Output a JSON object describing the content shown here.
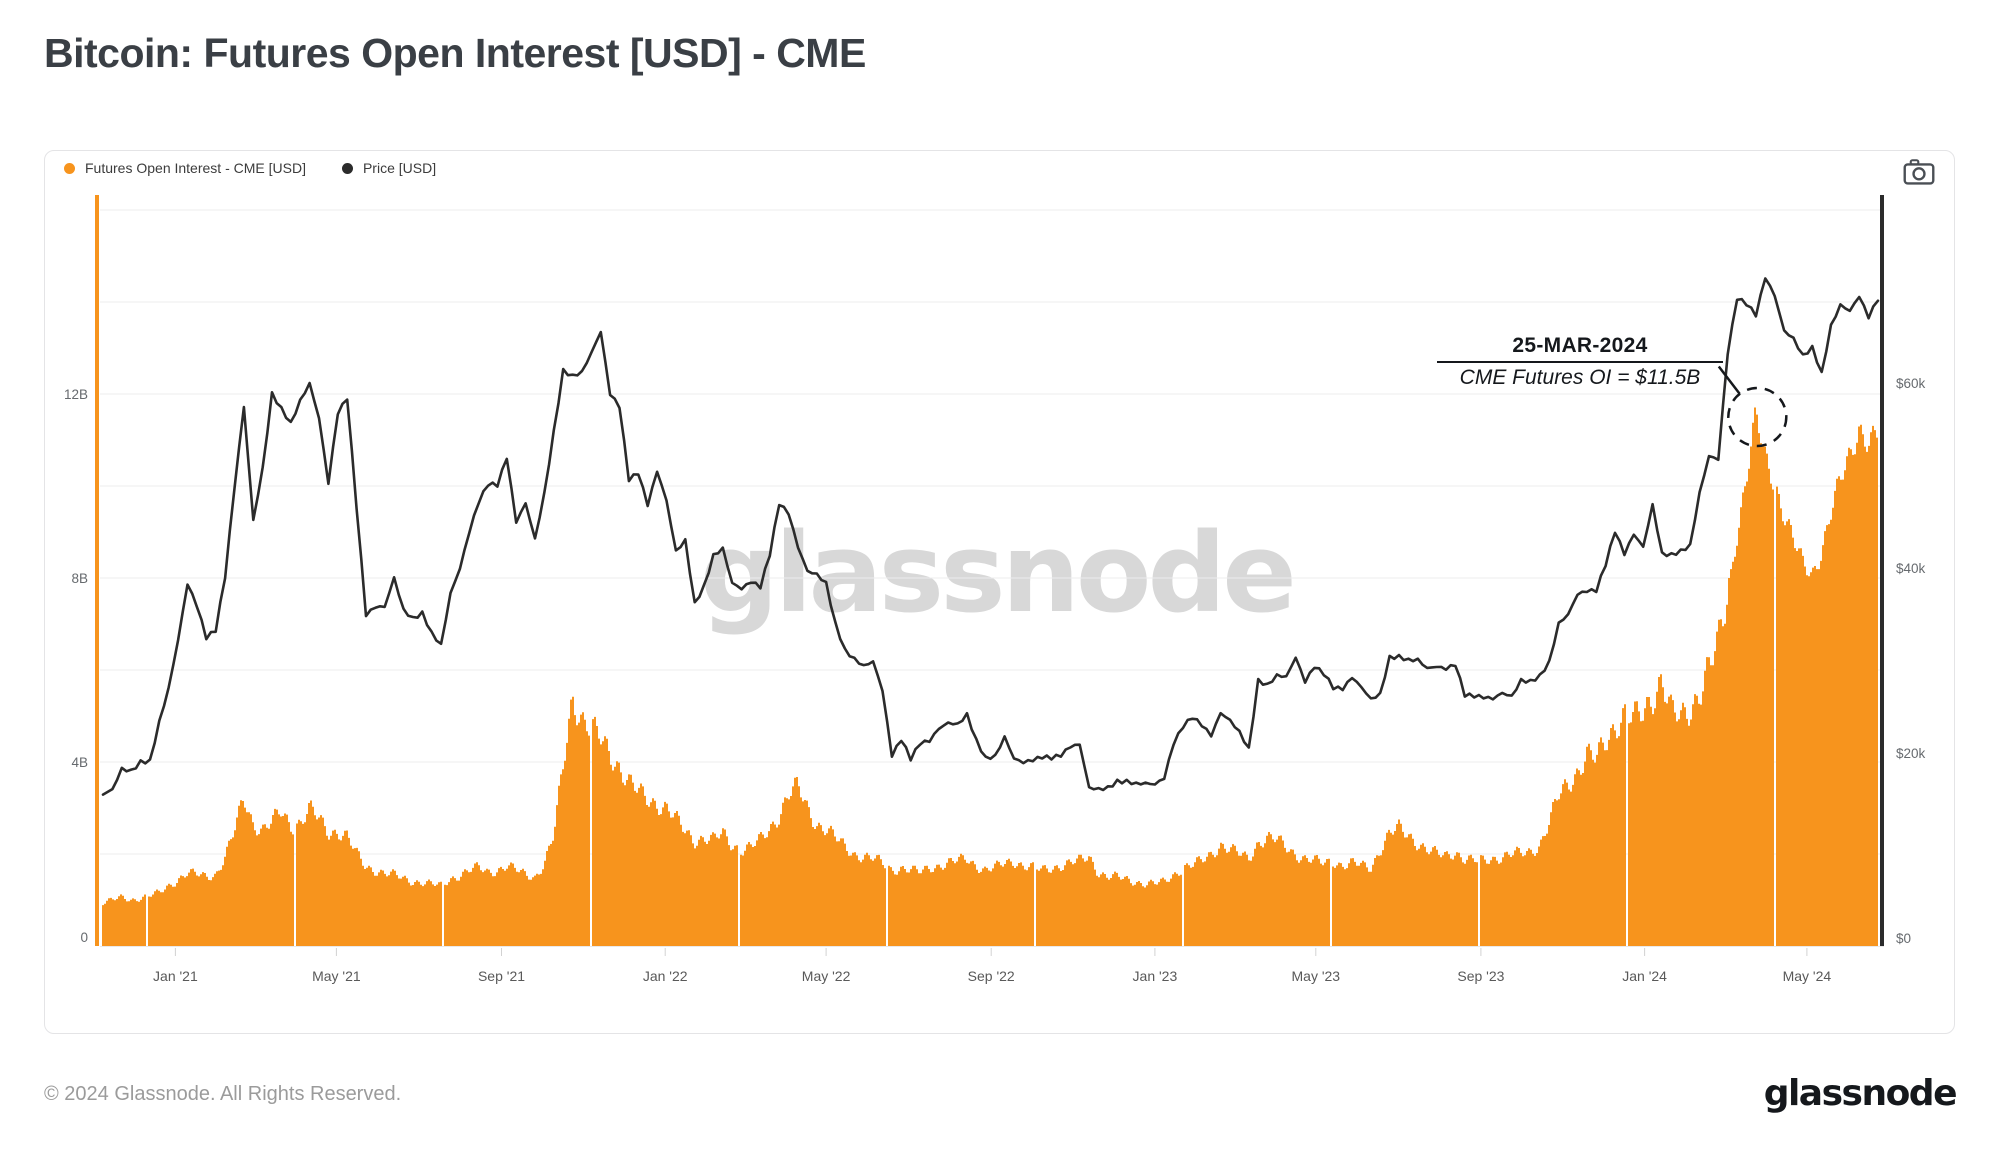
{
  "page": {
    "title": "Bitcoin: Futures Open Interest [USD] - CME"
  },
  "panel": {
    "legend": [
      {
        "label": "Futures Open Interest - CME [USD]",
        "color": "#f7941d"
      },
      {
        "label": "Price [USD]",
        "color": "#2b2b2b"
      }
    ],
    "camera_icon": "camera-icon"
  },
  "watermark": {
    "text": "glassnode"
  },
  "annotation": {
    "line1": "25-MAR-2024",
    "line2": "CME Futures OI = $11.5B",
    "date": "2024-03-25",
    "value_billions": 11.5
  },
  "footer": {
    "copyright": "© 2024 Glassnode. All Rights Reserved.",
    "logo_text": "glassnode"
  },
  "chart_data": {
    "type": "combo",
    "title": "Bitcoin: Futures Open Interest [USD] - CME",
    "x_start": "2020-11-08",
    "x_step_days": 7,
    "x_ticks": [
      {
        "label": "Jan '21",
        "date": "2021-01-01"
      },
      {
        "label": "May '21",
        "date": "2021-05-01"
      },
      {
        "label": "Sep '21",
        "date": "2021-09-01"
      },
      {
        "label": "Jan '22",
        "date": "2022-01-01"
      },
      {
        "label": "May '22",
        "date": "2022-05-01"
      },
      {
        "label": "Sep '22",
        "date": "2022-09-01"
      },
      {
        "label": "Jan '23",
        "date": "2023-01-01"
      },
      {
        "label": "May '23",
        "date": "2023-05-01"
      },
      {
        "label": "Sep '23",
        "date": "2023-09-01"
      },
      {
        "label": "Jan '24",
        "date": "2024-01-01"
      },
      {
        "label": "May '24",
        "date": "2024-05-01"
      }
    ],
    "left_axis": {
      "series": "Futures Open Interest - CME [USD]",
      "unit": "billions USD",
      "range": [
        0,
        16.3
      ],
      "gridline_step_billions": 2,
      "ticks": [
        {
          "label": "0",
          "value": 0
        },
        {
          "label": "4B",
          "value": 4
        },
        {
          "label": "8B",
          "value": 8
        },
        {
          "label": "12B",
          "value": 12
        }
      ]
    },
    "right_axis": {
      "series": "Price [USD]",
      "unit": "thousands USD",
      "range": [
        0,
        80
      ],
      "ticks": [
        {
          "label": "$0",
          "value": 0
        },
        {
          "label": "$20k",
          "value": 20
        },
        {
          "label": "$40k",
          "value": 40
        },
        {
          "label": "$60k",
          "value": 60
        }
      ]
    },
    "series": [
      {
        "name": "Futures Open Interest - CME [USD]",
        "type": "bar",
        "axis": "left",
        "color": "#f7941d",
        "unit": "billions USD",
        "values": [
          0.95,
          1.0,
          1.05,
          1.0,
          1.05,
          1.1,
          1.15,
          1.3,
          1.45,
          1.6,
          1.55,
          1.5,
          1.55,
          1.95,
          2.5,
          3.2,
          2.65,
          2.55,
          2.7,
          2.9,
          2.6,
          2.7,
          3.0,
          2.75,
          2.45,
          2.5,
          2.4,
          2.0,
          1.7,
          1.65,
          1.6,
          1.55,
          1.45,
          1.4,
          1.4,
          1.35,
          1.3,
          1.45,
          1.55,
          1.65,
          1.7,
          1.6,
          1.65,
          1.75,
          1.65,
          1.55,
          1.5,
          1.8,
          2.4,
          3.9,
          5.45,
          4.95,
          4.7,
          4.5,
          4.2,
          3.9,
          3.55,
          3.35,
          3.2,
          3.1,
          3.0,
          2.75,
          2.5,
          2.3,
          2.35,
          2.3,
          2.45,
          2.2,
          2.1,
          2.15,
          2.3,
          2.55,
          2.85,
          3.3,
          3.45,
          3.0,
          2.65,
          2.55,
          2.35,
          2.15,
          2.0,
          1.95,
          1.9,
          1.8,
          1.65,
          1.7,
          1.65,
          1.6,
          1.7,
          1.75,
          1.8,
          1.85,
          1.9,
          1.75,
          1.65,
          1.7,
          1.8,
          1.85,
          1.75,
          1.7,
          1.65,
          1.7,
          1.75,
          1.8,
          1.85,
          1.95,
          1.6,
          1.5,
          1.5,
          1.45,
          1.4,
          1.35,
          1.35,
          1.4,
          1.55,
          1.7,
          1.75,
          1.85,
          2.0,
          2.2,
          2.1,
          2.0,
          1.9,
          2.25,
          2.35,
          2.3,
          2.15,
          2.0,
          1.9,
          1.85,
          1.8,
          1.85,
          1.75,
          1.8,
          1.75,
          1.7,
          2.1,
          2.45,
          2.55,
          2.4,
          2.25,
          2.1,
          2.0,
          1.95,
          2.05,
          1.9,
          1.85,
          1.85,
          1.9,
          1.95,
          2.0,
          2.0,
          2.05,
          2.2,
          2.7,
          3.25,
          3.5,
          3.8,
          4.2,
          4.05,
          4.4,
          4.8,
          5.1,
          4.95,
          5.0,
          5.4,
          5.9,
          5.1,
          4.9,
          5.1,
          5.6,
          6.1,
          6.5,
          7.6,
          9.0,
          10.2,
          11.5,
          10.6,
          10.1,
          9.4,
          8.8,
          8.3,
          8.1,
          8.6,
          9.4,
          10.1,
          10.7,
          11.3,
          10.9,
          11.1
        ]
      },
      {
        "name": "Price [USD]",
        "type": "line",
        "axis": "right",
        "color": "#2b2b2b",
        "unit": "thousands USD",
        "values": [
          15.5,
          16.1,
          18.4,
          18.2,
          19.2,
          19.3,
          23.5,
          27.1,
          32.2,
          38.2,
          35.8,
          32.3,
          33.1,
          38.9,
          48.6,
          57.4,
          45.2,
          50.9,
          59.0,
          57.4,
          55.8,
          58.2,
          60.0,
          56.2,
          49.1,
          56.6,
          58.2,
          46.4,
          34.8,
          35.7,
          35.8,
          39.0,
          35.6,
          34.7,
          35.3,
          33.1,
          31.8,
          37.3,
          39.9,
          43.8,
          47.0,
          48.9,
          48.8,
          51.8,
          44.9,
          47.0,
          43.2,
          48.2,
          54.9,
          61.5,
          60.9,
          61.3,
          63.3,
          65.5,
          58.7,
          57.3,
          49.4,
          50.1,
          46.7,
          50.4,
          47.3,
          41.9,
          43.1,
          36.3,
          38.2,
          41.5,
          42.2,
          38.4,
          37.7,
          38.4,
          37.8,
          41.3,
          46.8,
          45.8,
          42.2,
          39.7,
          39.4,
          38.5,
          34.1,
          31.3,
          30.3,
          29.5,
          29.9,
          26.7,
          19.6,
          21.3,
          19.2,
          20.9,
          21.2,
          22.6,
          23.3,
          23.2,
          24.3,
          21.5,
          19.6,
          19.8,
          21.8,
          19.4,
          18.9,
          19.1,
          19.4,
          19.3,
          19.6,
          20.6,
          20.9,
          16.3,
          16.2,
          16.4,
          17.1,
          17.1,
          16.8,
          16.8,
          16.6,
          17.2,
          20.9,
          22.7,
          23.7,
          22.9,
          21.8,
          24.3,
          23.6,
          22.4,
          20.6,
          28.0,
          27.5,
          28.5,
          28.3,
          30.3,
          27.6,
          29.2,
          28.4,
          26.9,
          26.8,
          28.1,
          27.1,
          25.9,
          26.5,
          30.5,
          30.6,
          30.2,
          30.2,
          29.2,
          29.3,
          29.0,
          29.4,
          26.1,
          26.0,
          25.9,
          25.8,
          26.5,
          26.2,
          28.0,
          27.9,
          28.5,
          30.0,
          34.1,
          35.0,
          37.1,
          37.4,
          37.4,
          40.2,
          43.8,
          41.4,
          43.6,
          42.3,
          46.9,
          41.7,
          41.6,
          42.0,
          42.6,
          48.2,
          52.1,
          51.7,
          63.1,
          69.0,
          68.4,
          67.2,
          71.3,
          69.4,
          65.7,
          64.9,
          63.1,
          64.0,
          61.2,
          66.3,
          68.5,
          67.8,
          69.3,
          67.0,
          68.9
        ]
      }
    ]
  }
}
